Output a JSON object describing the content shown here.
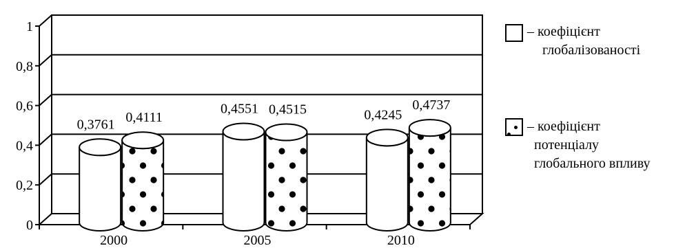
{
  "chart_data": {
    "type": "bar",
    "categories": [
      "2000",
      "2005",
      "2010"
    ],
    "series": [
      {
        "name": "коефіцієнт глобалізованості",
        "pattern": "plain",
        "values": [
          0.3761,
          0.4551,
          0.4245
        ]
      },
      {
        "name": "коефіцієнт потенціалу глобального впливу",
        "pattern": "dotted",
        "values": [
          0.4111,
          0.4515,
          0.4737
        ]
      }
    ],
    "data_labels": [
      [
        "0,3761",
        "0,4111"
      ],
      [
        "0,4551",
        "0,4515"
      ],
      [
        "0,4245",
        "0,4737"
      ]
    ],
    "yticks": [
      {
        "value": 0,
        "label": "0"
      },
      {
        "value": 0.2,
        "label": "0,2"
      },
      {
        "value": 0.4,
        "label": "0,4"
      },
      {
        "value": 0.6,
        "label": "0,6"
      },
      {
        "value": 0.8,
        "label": "0,8"
      },
      {
        "value": 1,
        "label": "1"
      }
    ],
    "ylim": [
      0,
      1
    ],
    "grid": true,
    "style3d": "cylinder",
    "legend_position": "right",
    "colors": {
      "line": "#000000",
      "fill": "#ffffff",
      "dots": "#000000"
    }
  },
  "legend": {
    "item1": {
      "line1": "– коефіцієнт",
      "line2": "глобалізованості"
    },
    "item2": {
      "line1": "– коефіцієнт",
      "line2": "потенціалу",
      "line3": "глобального впливу"
    }
  }
}
